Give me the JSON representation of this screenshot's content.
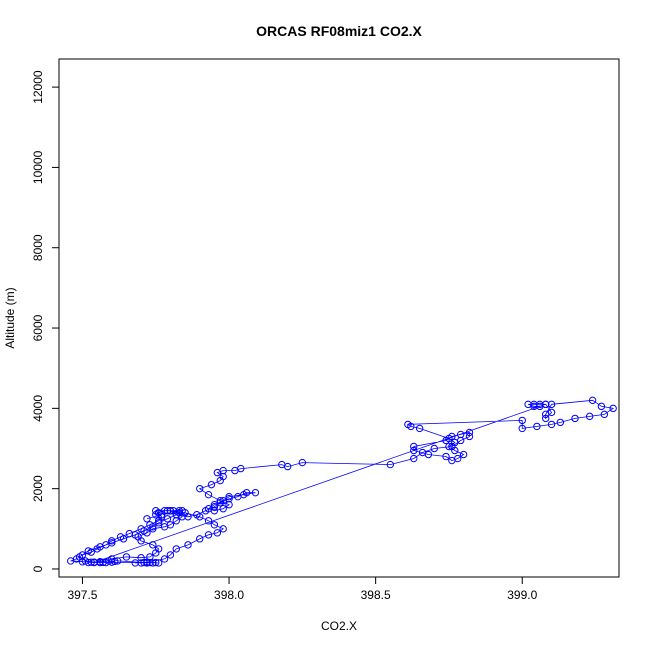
{
  "chart_data": {
    "type": "scatter",
    "title": "ORCAS RF08miz1 CO2.X",
    "xlabel": "CO2.X",
    "ylabel": "Altitude (m)",
    "xlim": [
      397.42,
      399.33
    ],
    "ylim": [
      -200,
      12700
    ],
    "x_ticks": [
      397.5,
      398.0,
      398.5,
      399.0
    ],
    "x_tick_labels": [
      "397.5",
      "398.0",
      "398.5",
      "399.0"
    ],
    "y_ticks": [
      0,
      2000,
      4000,
      6000,
      8000,
      10000,
      12000
    ],
    "y_tick_labels": [
      "0",
      "2000",
      "4000",
      "6000",
      "8000",
      "10000",
      "12000"
    ],
    "grid": false,
    "legend": "none",
    "series_color": "#0000ff",
    "points": [
      [
        397.76,
        150
      ],
      [
        397.74,
        150
      ],
      [
        397.72,
        150
      ],
      [
        397.7,
        150
      ],
      [
        397.68,
        150
      ],
      [
        397.72,
        170
      ],
      [
        397.78,
        250
      ],
      [
        397.8,
        350
      ],
      [
        397.82,
        500
      ],
      [
        397.86,
        600
      ],
      [
        397.9,
        750
      ],
      [
        397.93,
        850
      ],
      [
        397.96,
        900
      ],
      [
        397.98,
        1000
      ],
      [
        397.95,
        1100
      ],
      [
        397.93,
        1200
      ],
      [
        397.9,
        1300
      ],
      [
        397.85,
        1400
      ],
      [
        397.8,
        1450
      ],
      [
        397.75,
        1450
      ],
      [
        397.77,
        1300
      ],
      [
        397.76,
        1200
      ],
      [
        397.73,
        1100
      ],
      [
        397.7,
        1000
      ],
      [
        397.66,
        880
      ],
      [
        397.63,
        800
      ],
      [
        397.6,
        700
      ],
      [
        397.58,
        600
      ],
      [
        397.55,
        500
      ],
      [
        397.53,
        420
      ],
      [
        397.5,
        350
      ],
      [
        397.48,
        250
      ],
      [
        397.46,
        200
      ],
      [
        397.5,
        180
      ],
      [
        397.53,
        170
      ],
      [
        397.56,
        180
      ],
      [
        397.59,
        200
      ],
      [
        397.61,
        190
      ],
      [
        397.6,
        170
      ],
      [
        397.57,
        165
      ],
      [
        397.54,
        170
      ],
      [
        397.51,
        200
      ],
      [
        397.49,
        300
      ],
      [
        397.52,
        450
      ],
      [
        397.56,
        550
      ],
      [
        397.6,
        650
      ],
      [
        397.64,
        750
      ],
      [
        397.68,
        850
      ],
      [
        397.71,
        950
      ],
      [
        397.74,
        1050
      ],
      [
        397.76,
        1150
      ],
      [
        397.79,
        1250
      ],
      [
        397.82,
        1350
      ],
      [
        397.84,
        1450
      ],
      [
        397.8,
        1450
      ],
      [
        397.82,
        1350
      ],
      [
        397.86,
        1300
      ],
      [
        397.89,
        1350
      ],
      [
        397.92,
        1450
      ],
      [
        397.95,
        1550
      ],
      [
        397.97,
        1650
      ],
      [
        398.0,
        1750
      ],
      [
        398.03,
        1800
      ],
      [
        398.06,
        1900
      ],
      [
        398.09,
        1900
      ],
      [
        398.05,
        1850
      ],
      [
        398.0,
        1800
      ],
      [
        397.98,
        1700
      ],
      [
        397.95,
        1600
      ],
      [
        397.93,
        1500
      ],
      [
        397.95,
        1450
      ],
      [
        397.98,
        1500
      ],
      [
        398.0,
        1600
      ],
      [
        397.97,
        1700
      ],
      [
        397.93,
        1850
      ],
      [
        397.9,
        2000
      ],
      [
        397.94,
        2100
      ],
      [
        397.97,
        2200
      ],
      [
        397.98,
        2300
      ],
      [
        397.96,
        2400
      ],
      [
        397.98,
        2450
      ],
      [
        398.02,
        2450
      ],
      [
        398.04,
        2500
      ],
      [
        398.18,
        2600
      ],
      [
        398.2,
        2550
      ],
      [
        398.25,
        2650
      ],
      [
        398.55,
        2600
      ],
      [
        398.63,
        2750
      ],
      [
        398.66,
        2900
      ],
      [
        398.7,
        3000
      ],
      [
        398.76,
        3050
      ],
      [
        398.79,
        3200
      ],
      [
        398.82,
        3300
      ],
      [
        398.82,
        3400
      ],
      [
        398.79,
        3350
      ],
      [
        398.76,
        3300
      ],
      [
        398.74,
        3200
      ],
      [
        398.63,
        3050
      ],
      [
        398.63,
        2950
      ],
      [
        398.68,
        2850
      ],
      [
        398.74,
        2800
      ],
      [
        398.76,
        2700
      ],
      [
        398.78,
        2750
      ],
      [
        398.8,
        2850
      ],
      [
        398.77,
        2950
      ],
      [
        398.75,
        3050
      ],
      [
        398.77,
        3150
      ],
      [
        398.75,
        3250
      ],
      [
        398.65,
        3500
      ],
      [
        398.62,
        3550
      ],
      [
        398.61,
        3600
      ],
      [
        399.0,
        3700
      ],
      [
        399.0,
        3500
      ],
      [
        399.05,
        3550
      ],
      [
        399.1,
        3600
      ],
      [
        399.13,
        3650
      ],
      [
        399.18,
        3750
      ],
      [
        399.23,
        3800
      ],
      [
        399.28,
        3850
      ],
      [
        399.31,
        4000
      ],
      [
        399.27,
        4050
      ],
      [
        399.24,
        4200
      ],
      [
        399.1,
        4100
      ],
      [
        399.08,
        3850
      ],
      [
        399.08,
        3750
      ],
      [
        399.1,
        3900
      ],
      [
        399.08,
        4100
      ],
      [
        399.06,
        4100
      ],
      [
        399.04,
        4100
      ],
      [
        399.02,
        4100
      ],
      [
        399.04,
        4050
      ],
      [
        399.06,
        4050
      ],
      [
        399.08,
        4100
      ],
      [
        397.54,
        160
      ],
      [
        397.52,
        160
      ],
      [
        397.56,
        160
      ],
      [
        397.58,
        160
      ],
      [
        397.75,
        160
      ],
      [
        397.73,
        160
      ],
      [
        397.71,
        160
      ],
      [
        397.62,
        200
      ],
      [
        397.6,
        250
      ],
      [
        397.65,
        300
      ],
      [
        397.7,
        280
      ],
      [
        397.73,
        300
      ],
      [
        397.75,
        400
      ],
      [
        397.76,
        500
      ],
      [
        397.74,
        600
      ],
      [
        397.7,
        700
      ],
      [
        397.69,
        800
      ],
      [
        397.72,
        900
      ],
      [
        397.74,
        1000
      ],
      [
        397.78,
        1050
      ],
      [
        397.8,
        1100
      ],
      [
        397.82,
        1200
      ],
      [
        397.84,
        1300
      ],
      [
        397.83,
        1400
      ],
      [
        397.81,
        1450
      ],
      [
        397.79,
        1450
      ],
      [
        397.83,
        1450
      ],
      [
        397.78,
        1450
      ],
      [
        397.76,
        1400
      ],
      [
        397.75,
        1350
      ],
      [
        397.77,
        1350
      ],
      [
        397.72,
        1250
      ]
    ]
  }
}
